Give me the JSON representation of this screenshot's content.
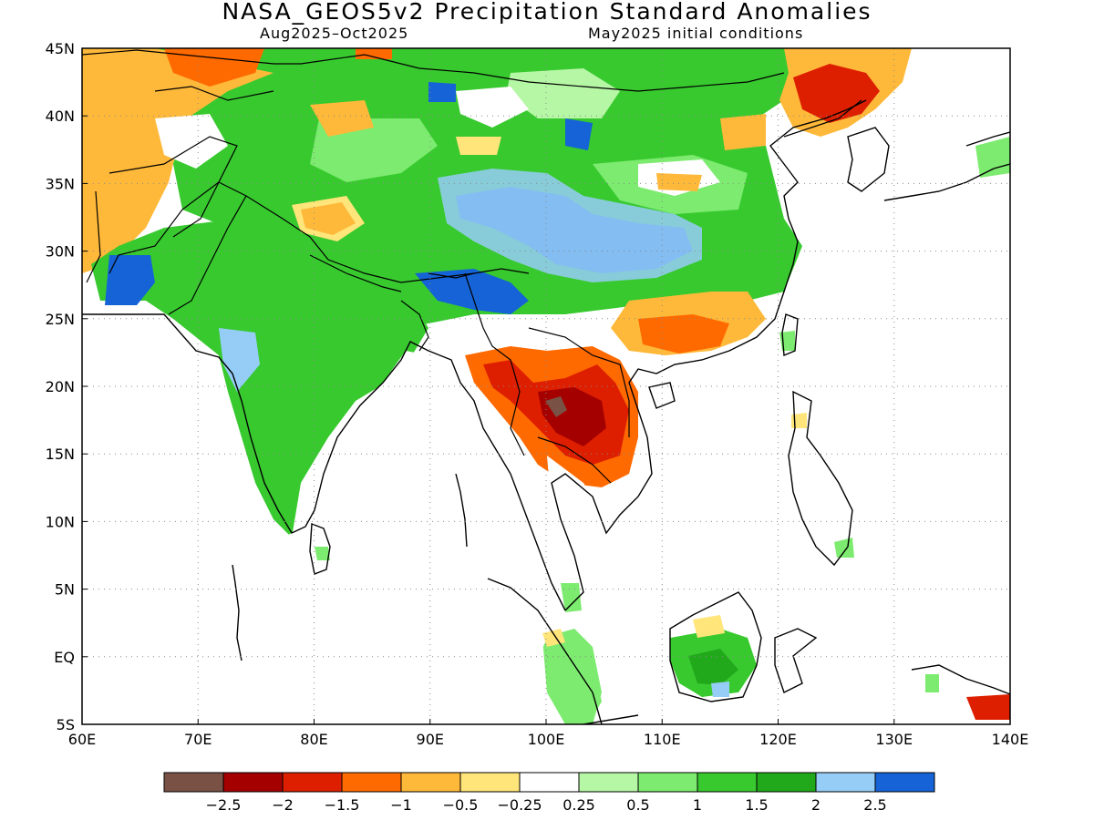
{
  "title": "NASA_GEOS5v2 Precipitation Standard Anomalies",
  "subtitle_left": "Aug2025–Oct2025",
  "subtitle_right": "May2025 initial conditions",
  "map": {
    "lon_range": [
      60,
      140
    ],
    "lat_range": [
      -5,
      45
    ],
    "lon_ticks": [
      "60E",
      "70E",
      "80E",
      "90E",
      "100E",
      "110E",
      "120E",
      "130E",
      "140E"
    ],
    "lat_ticks": [
      "45N",
      "40N",
      "35N",
      "30N",
      "25N",
      "20N",
      "15N",
      "10N",
      "5N",
      "EQ",
      "5S"
    ],
    "grid": "dotted"
  },
  "legend": {
    "labels": [
      "−2.5",
      "−2",
      "−1.5",
      "−1",
      "−0.5",
      "−0.25",
      "0.25",
      "0.5",
      "1",
      "1.5",
      "2",
      "2.5"
    ],
    "colors": [
      "#7a5245",
      "#a50000",
      "#dd1f00",
      "#ff6a00",
      "#ffb93a",
      "#ffe57a",
      "#ffffff",
      "#b6f7a5",
      "#7ceb6f",
      "#38c92f",
      "#21a81b",
      "#96cdf7",
      "#1563d6"
    ]
  }
}
